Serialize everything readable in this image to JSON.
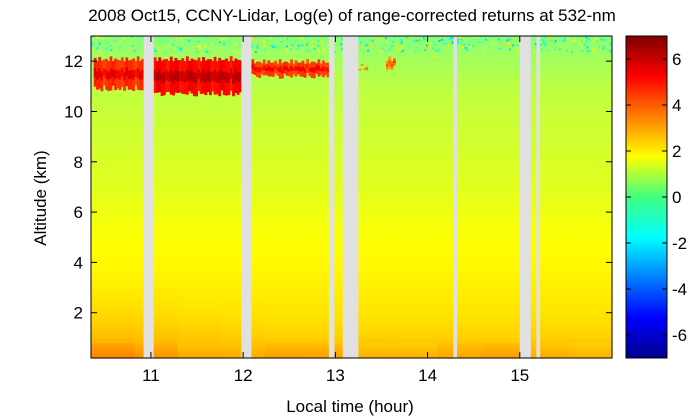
{
  "chart_data": {
    "type": "heatmap",
    "title": "2008 Oct15, CCNY-Lidar, Log(e) of range-corrected returns at 532-nm",
    "xlabel": "Local time (hour)",
    "ylabel": "Altitude (km)",
    "xlim": [
      10.35,
      16.0
    ],
    "ylim": [
      0.2,
      13.0
    ],
    "x_ticks": [
      11,
      12,
      13,
      14,
      15
    ],
    "x_tick_labels": [
      "11",
      "12",
      "13",
      "14",
      "15"
    ],
    "y_ticks": [
      2,
      4,
      6,
      8,
      10,
      12
    ],
    "y_tick_labels": [
      "2",
      "4",
      "6",
      "8",
      "10",
      "12"
    ],
    "colorbar": {
      "range": [
        -7,
        7
      ],
      "ticks": [
        -6,
        -4,
        -2,
        0,
        2,
        4,
        6
      ],
      "tick_labels": [
        "-6",
        "-4",
        "-2",
        "0",
        "2",
        "4",
        "6"
      ],
      "colormap": "jet"
    },
    "data_gaps_hours": [
      [
        10.92,
        11.03
      ],
      [
        11.98,
        12.09
      ],
      [
        12.93,
        12.99
      ],
      [
        13.08,
        13.25
      ],
      [
        14.28,
        14.32
      ],
      [
        15.0,
        15.12
      ],
      [
        15.18,
        15.22
      ]
    ],
    "gap_color": "#e0e0e0",
    "cloud_layers": [
      {
        "start_hour": 10.38,
        "end_hour": 10.92,
        "base_km": 10.8,
        "top_km": 12.2,
        "level": 4.6
      },
      {
        "start_hour": 11.03,
        "end_hour": 11.98,
        "base_km": 10.6,
        "top_km": 12.2,
        "level": 5.2
      },
      {
        "start_hour": 12.09,
        "end_hour": 12.93,
        "base_km": 11.3,
        "top_km": 12.1,
        "level": 4.4
      },
      {
        "start_hour": 13.25,
        "end_hour": 13.35,
        "base_km": 11.6,
        "top_km": 11.9,
        "level": 3.0
      },
      {
        "start_hour": 13.55,
        "end_hour": 13.65,
        "base_km": 11.6,
        "top_km": 12.2,
        "level": 3.3
      },
      {
        "start_hour": 14.05,
        "end_hour": 14.15,
        "base_km": 11.9,
        "top_km": 12.1,
        "level": 2.5
      }
    ],
    "profile_levels": [
      {
        "altitude_km": 0.3,
        "level": 2.9
      },
      {
        "altitude_km": 1.0,
        "level": 2.4
      },
      {
        "altitude_km": 2.0,
        "level": 2.1
      },
      {
        "altitude_km": 3.5,
        "level": 1.9
      },
      {
        "altitude_km": 5.0,
        "level": 1.7
      },
      {
        "altitude_km": 7.0,
        "level": 1.35
      },
      {
        "altitude_km": 9.0,
        "level": 1.1
      },
      {
        "altitude_km": 11.0,
        "level": 0.85
      },
      {
        "altitude_km": 12.5,
        "level": 0.35
      },
      {
        "altitude_km": 13.0,
        "level": 0.0
      }
    ]
  }
}
